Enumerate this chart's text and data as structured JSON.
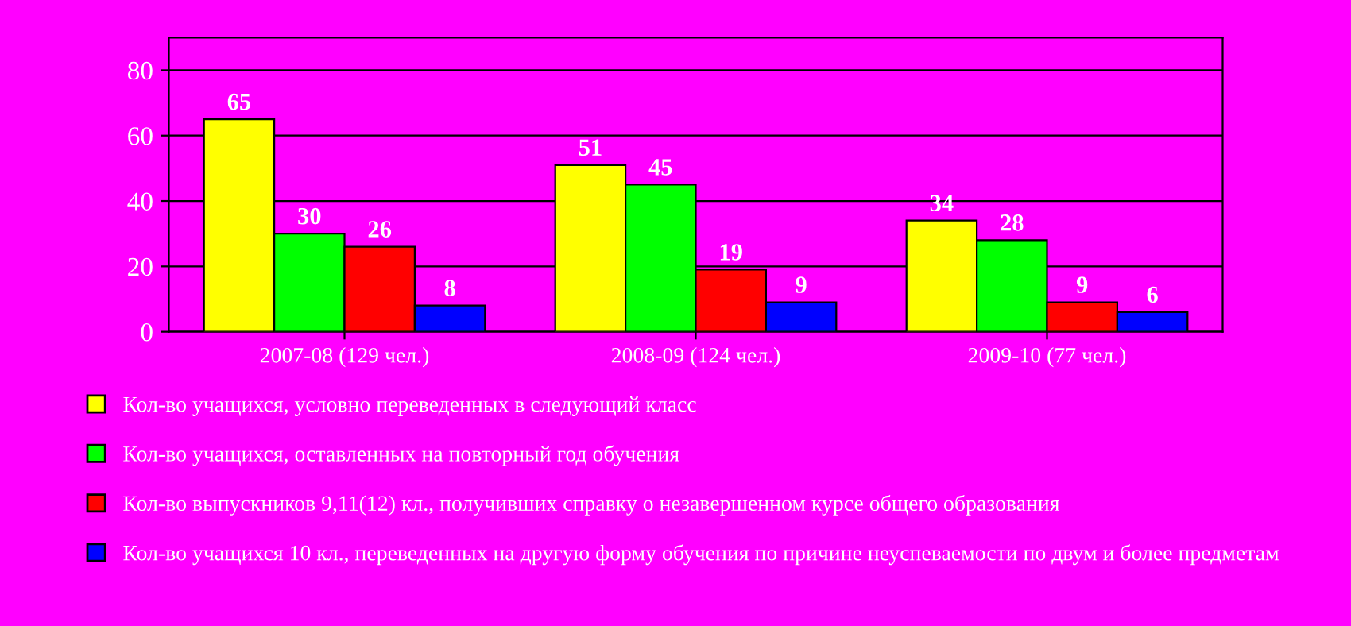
{
  "chart_data": {
    "type": "bar",
    "categories": [
      "2007-08 (129 чел.)",
      "2008-09 (124 чел.)",
      "2009-10 (77 чел.)"
    ],
    "series": [
      {
        "name": "Кол-во учащихся, условно переведенных в следующий класс",
        "color": "#ffff00",
        "values": [
          65,
          51,
          34
        ]
      },
      {
        "name": "Кол-во учащихся, оставленных на повторный год обучения",
        "color": "#00ff00",
        "values": [
          30,
          45,
          28
        ]
      },
      {
        "name": "Кол-во выпускников 9,11(12) кл., получивших справку о незавершенном курсе общего образования",
        "color": "#ff0000",
        "values": [
          26,
          19,
          9
        ]
      },
      {
        "name": "Кол-во учащихся 10 кл., переведенных на другую форму обучения по причине неуспеваемости по двум и более предметам",
        "color": "#0000ff",
        "values": [
          8,
          9,
          6
        ]
      }
    ],
    "ylim": [
      0,
      90
    ],
    "yticks": [
      0,
      20,
      40,
      60,
      80
    ],
    "grid": "y",
    "legend": "bottom",
    "data_labels": true
  }
}
